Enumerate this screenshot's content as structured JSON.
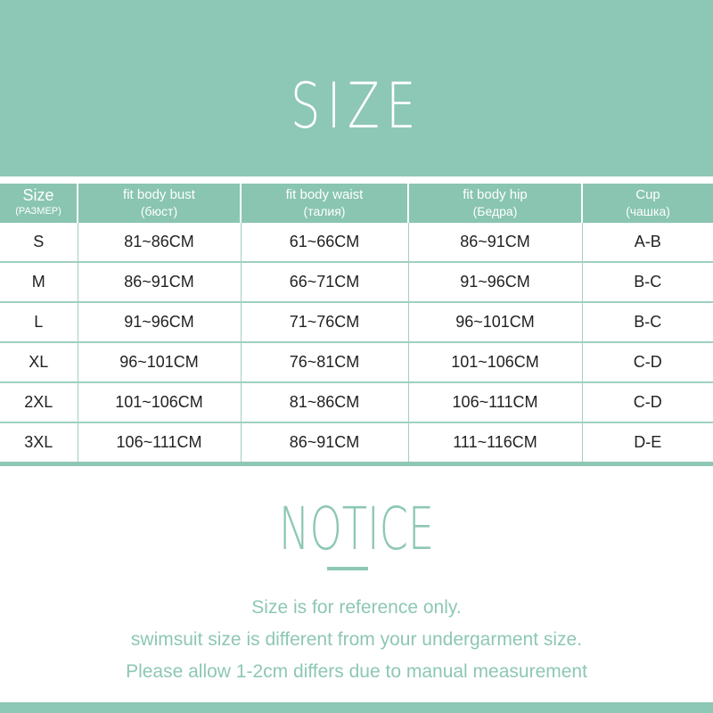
{
  "title": "SIZE",
  "table": {
    "headers": [
      {
        "main": "Size",
        "sub": "(РАЗМЕР)"
      },
      {
        "main": "fit body bust",
        "sub": "(бюст)"
      },
      {
        "main": "fit body waist",
        "sub": "(талия)"
      },
      {
        "main": "fit body hip",
        "sub": "(Бедра)"
      },
      {
        "main": "Cup",
        "sub": "(чашка)"
      }
    ],
    "rows": [
      [
        "S",
        "81~86CM",
        "61~66CM",
        "86~91CM",
        "A-B"
      ],
      [
        "M",
        "86~91CM",
        "66~71CM",
        "91~96CM",
        "B-C"
      ],
      [
        "L",
        "91~96CM",
        "71~76CM",
        "96~101CM",
        "B-C"
      ],
      [
        "XL",
        "96~101CM",
        "76~81CM",
        "101~106CM",
        "C-D"
      ],
      [
        "2XL",
        "101~106CM",
        "81~86CM",
        "106~111CM",
        "C-D"
      ],
      [
        "3XL",
        "106~111CM",
        "86~91CM",
        "111~116CM",
        "D-E"
      ]
    ]
  },
  "notice": {
    "title": "NOTICE",
    "lines": [
      "Size is for reference only.",
      "swimsuit size is different from your undergarment size.",
      "Please allow 1-2cm differs due to manual measurement"
    ]
  },
  "colors": {
    "accent": "#8dc7b5"
  }
}
